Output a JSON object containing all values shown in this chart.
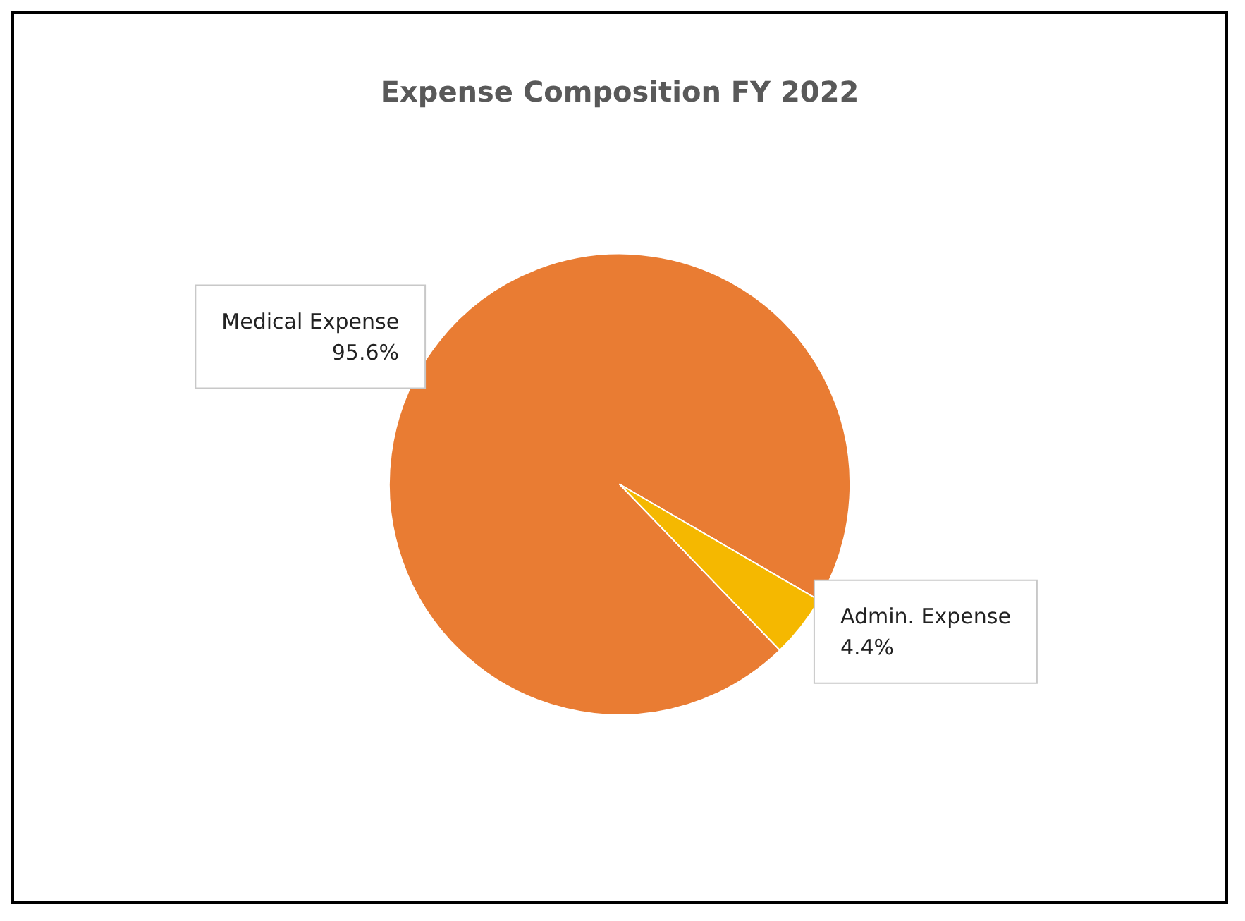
{
  "chart_data": {
    "type": "pie",
    "title": "Expense Composition FY 2022",
    "categories": [
      "Medical Expense",
      "Admin. Expense"
    ],
    "values": [
      95.6,
      4.4
    ],
    "value_labels": [
      "95.6%",
      "4.4%"
    ],
    "colors": [
      "#e97c33",
      "#f5b800"
    ],
    "legend": false
  }
}
